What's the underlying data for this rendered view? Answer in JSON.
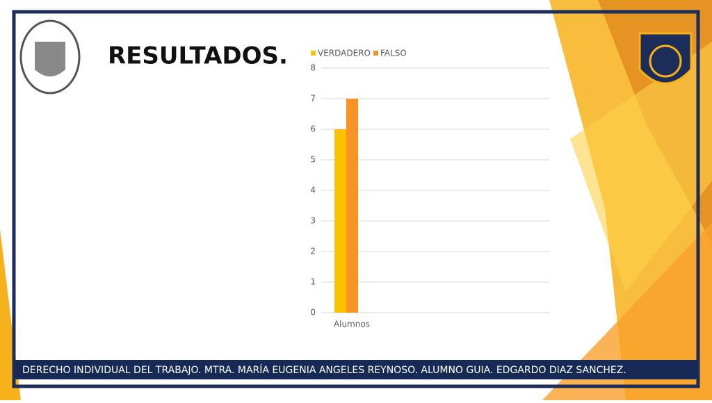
{
  "chart_data": {
    "type": "bar",
    "title": "RESULTADOS.",
    "categories": [
      "Alumnos"
    ],
    "series": [
      {
        "name": "VERDADERO",
        "color": "#ffc000",
        "values": [
          6
        ]
      },
      {
        "name": "FALSO",
        "color": "#f79425",
        "values": [
          7
        ]
      }
    ],
    "ylim": [
      0,
      8
    ],
    "yticks": [
      0,
      1,
      2,
      3,
      4,
      5,
      6,
      7,
      8
    ],
    "grid": true,
    "legend": "top"
  },
  "footer": "DERECHO INDIVIDUAL DEL TRABAJO. MTRA. MARÍA EUGENIA ANGELES REYNOSO. ALUMNO GUIA. EDGARDO DIAZ SANCHEZ."
}
